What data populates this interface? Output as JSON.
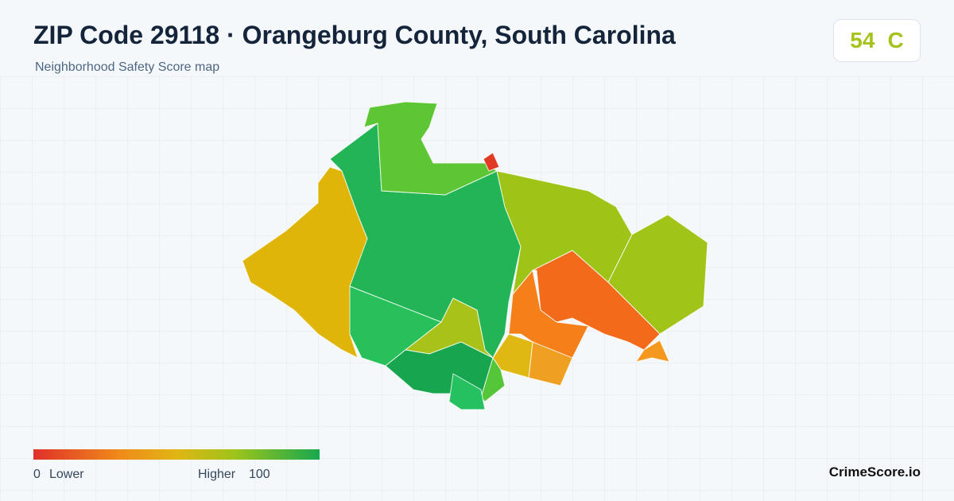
{
  "header": {
    "title": "ZIP Code 29118 · Orangeburg County, South Carolina",
    "subtitle": "Neighborhood Safety Score map"
  },
  "score": {
    "value": "54",
    "grade": "C"
  },
  "legend": {
    "min": "0",
    "min_label": "Lower",
    "max_label": "Higher",
    "max": "100"
  },
  "brand": "CrimeScore.io"
}
